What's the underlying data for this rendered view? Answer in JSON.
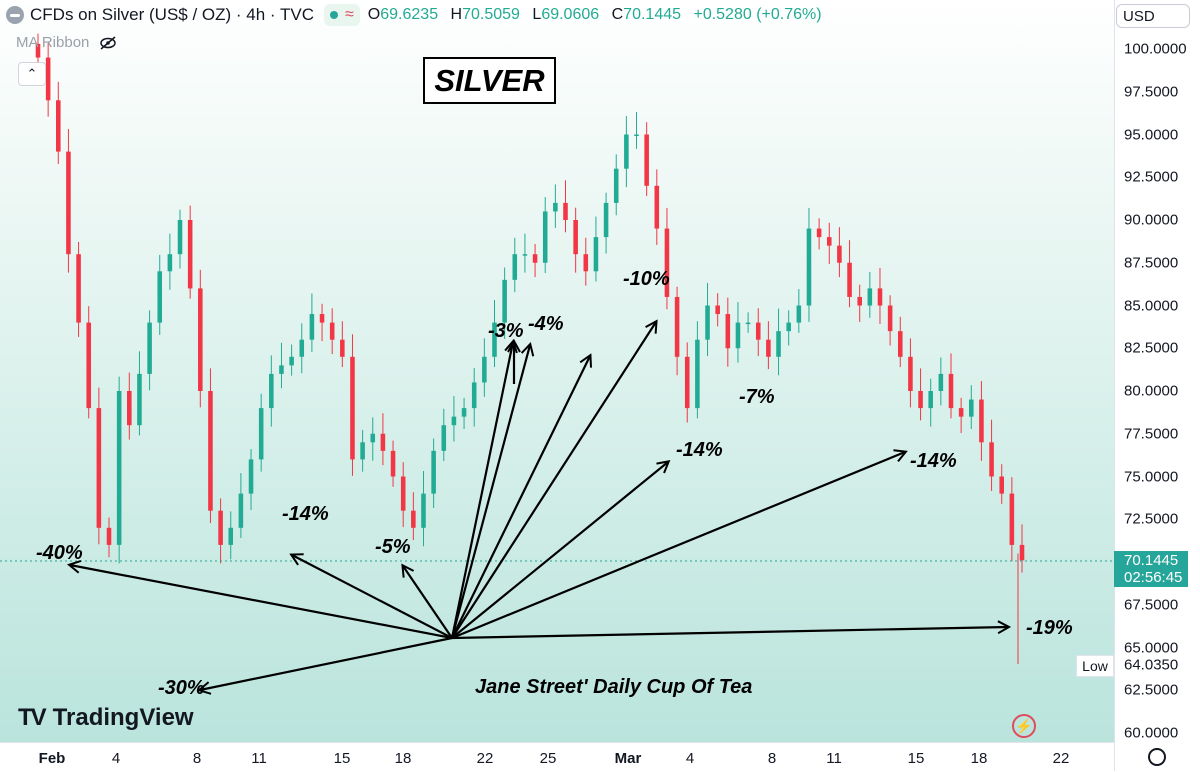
{
  "header": {
    "title": "CFDs on Silver (US$ / OZ) · 4h · TVC",
    "ohlc": [
      {
        "k": "O",
        "v": "69.6235"
      },
      {
        "k": "H",
        "v": "70.5059"
      },
      {
        "k": "L",
        "v": "69.0606"
      },
      {
        "k": "C",
        "v": "70.1445"
      }
    ],
    "change": "+0.5280 (+0.76%)",
    "indicator": "MA Ribbon",
    "currency": "USD"
  },
  "price_tag": {
    "price": "70.1445",
    "countdown": "02:56:45"
  },
  "low_marker": {
    "label": "Low",
    "value": "64.0350"
  },
  "brand": "TradingView",
  "colors": {
    "up": "#22ab94",
    "down": "#f23645",
    "area_top": "#e8f6f2",
    "area_bottom": "#b9e4dc",
    "accent": "#26a69a"
  },
  "annotations": {
    "title": "SILVER",
    "credit": "Jane Street' Daily Cup Of Tea",
    "labels": [
      "-40%",
      "-30%",
      "-14%",
      "-5%",
      "-3%",
      "-4%",
      "-10%",
      "-14%",
      "-7%",
      "-14%",
      "-19%"
    ]
  },
  "chart_data": {
    "type": "candlestick",
    "title": "CFDs on Silver (US$ / OZ) · 4h · TVC",
    "y_ticks": [
      "100.0000",
      "97.5000",
      "95.0000",
      "92.5000",
      "90.0000",
      "87.5000",
      "85.0000",
      "82.5000",
      "80.0000",
      "77.5000",
      "75.0000",
      "72.5000",
      "67.5000",
      "65.0000",
      "62.5000",
      "60.0000"
    ],
    "x_ticks": [
      "Feb",
      "4",
      "8",
      "11",
      "15",
      "18",
      "22",
      "25",
      "Mar",
      "4",
      "8",
      "11",
      "15",
      "18",
      "22"
    ],
    "ylim": [
      60,
      101
    ],
    "last_price": 70.1445,
    "series_close": [
      99.5,
      97.0,
      94.0,
      88.0,
      84.0,
      79.0,
      72.0,
      71.0,
      80.0,
      78.0,
      81.0,
      84.0,
      87.0,
      88.0,
      90.0,
      86.0,
      80.0,
      73.0,
      71.0,
      72.0,
      74.0,
      76.0,
      79.0,
      81.0,
      81.5,
      82.0,
      83.0,
      84.5,
      84.0,
      83.0,
      82.0,
      76.0,
      77.0,
      77.5,
      76.5,
      75.0,
      73.0,
      72.0,
      74.0,
      76.5,
      78.0,
      78.5,
      79.0,
      80.5,
      82.0,
      84.0,
      86.5,
      88.0,
      88.0,
      87.5,
      90.5,
      91.0,
      90.0,
      88.0,
      87.0,
      89.0,
      91.0,
      93.0,
      95.0,
      95.0,
      92.0,
      89.5,
      85.5,
      82.0,
      79.0,
      83.0,
      85.0,
      84.5,
      82.5,
      84.0,
      84.0,
      83.0,
      82.0,
      83.5,
      84.0,
      85.0,
      89.5,
      89.0,
      88.5,
      87.5,
      85.5,
      85.0,
      86.0,
      85.0,
      83.5,
      82.0,
      80.0,
      79.0,
      80.0,
      81.0,
      79.0,
      78.5,
      79.5,
      77.0,
      75.0,
      74.0,
      71.0,
      70.1
    ],
    "low_value": 64.035
  }
}
